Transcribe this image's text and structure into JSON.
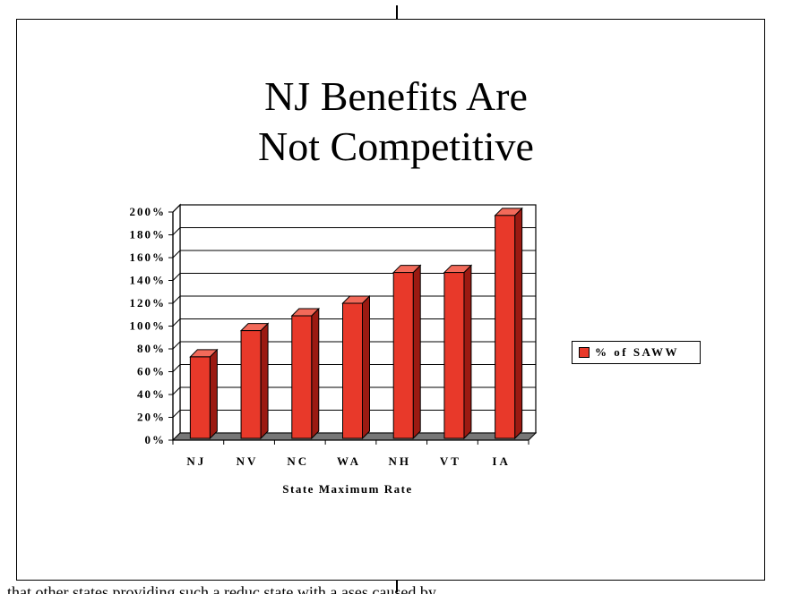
{
  "title": {
    "line1": "NJ Benefits Are",
    "line2": "Not Competitive"
  },
  "legend": {
    "label": "% of SAWW"
  },
  "colors": {
    "bar": "#e8392a",
    "bar_side": "#9b1a12",
    "bar_top": "#f26a5a",
    "floor": "#777777"
  },
  "bottom_text": "that other states providing such a reduc    state with a                    ases caused by",
  "chart_data": {
    "type": "bar",
    "title": "NJ Benefits Are Not Competitive",
    "xlabel": "State Maximum Rate",
    "ylabel": "",
    "categories": [
      "NJ",
      "NV",
      "NC",
      "WA",
      "NH",
      "VT",
      "IA"
    ],
    "series": [
      {
        "name": "% of SAWW",
        "values": [
          73,
          96,
          109,
          120,
          147,
          147,
          197
        ]
      }
    ],
    "ylim": [
      0,
      200
    ],
    "yticks": [
      "0%",
      "20%",
      "40%",
      "60%",
      "80%",
      "100%",
      "120%",
      "140%",
      "160%",
      "180%",
      "200%"
    ],
    "grid": true,
    "legend_position": "right",
    "three_d": true
  }
}
